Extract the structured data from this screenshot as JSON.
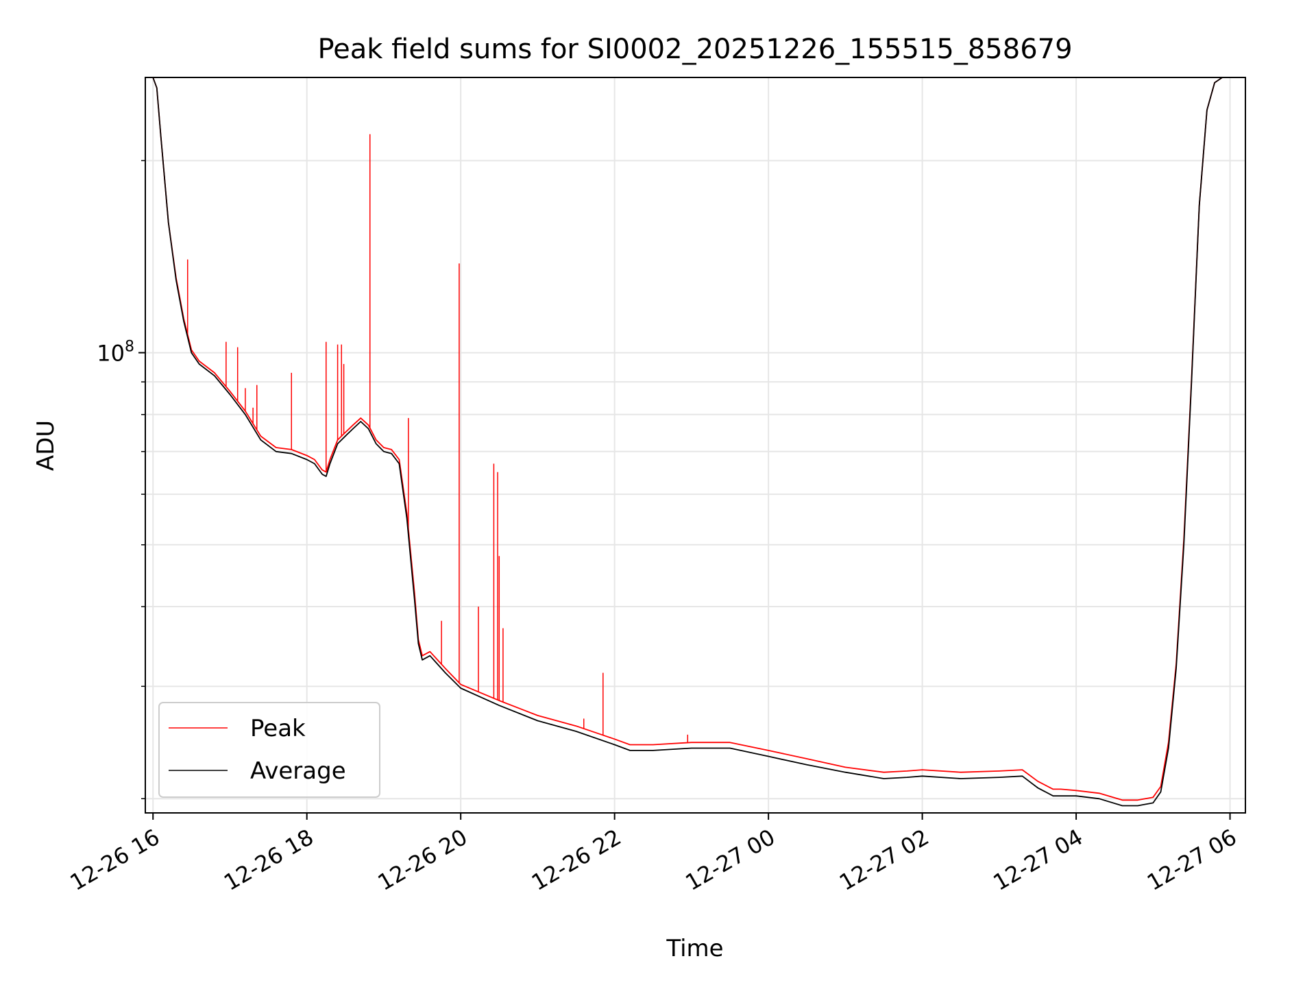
{
  "chart_data": {
    "type": "line",
    "title": "Peak field sums for SI0002_20251226_155515_858679",
    "xlabel": "Time",
    "ylabel": "ADU",
    "yscale": "log",
    "grid": true,
    "x_unit": "hours since 2025-12-26 00:00",
    "xlim": [
      15.9,
      30.2
    ],
    "ylim": [
      19000000,
      270000000
    ],
    "x_ticks": [
      {
        "value": 16,
        "label": "12-26 16"
      },
      {
        "value": 18,
        "label": "12-26 18"
      },
      {
        "value": 20,
        "label": "12-26 20"
      },
      {
        "value": 22,
        "label": "12-26 22"
      },
      {
        "value": 24,
        "label": "12-27 00"
      },
      {
        "value": 26,
        "label": "12-27 02"
      },
      {
        "value": 28,
        "label": "12-27 04"
      },
      {
        "value": 30,
        "label": "12-27 06"
      }
    ],
    "y_major_ticks": [
      {
        "value": 100000000,
        "base": "10",
        "exp": "8"
      }
    ],
    "y_minor_ticks": [
      20000000,
      30000000,
      40000000,
      50000000,
      60000000,
      70000000,
      80000000,
      90000000,
      200000000
    ],
    "legend": {
      "position": "lower-left",
      "entries": [
        {
          "label": "Peak",
          "color": "#ff0000"
        },
        {
          "label": "Average",
          "color": "#000000"
        }
      ]
    },
    "series": [
      {
        "name": "Average",
        "color": "#000000",
        "x": [
          16.0,
          16.05,
          16.1,
          16.2,
          16.3,
          16.4,
          16.5,
          16.6,
          16.8,
          17.0,
          17.2,
          17.4,
          17.6,
          17.8,
          18.0,
          18.1,
          18.2,
          18.25,
          18.3,
          18.4,
          18.5,
          18.6,
          18.7,
          18.8,
          18.9,
          19.0,
          19.1,
          19.2,
          19.3,
          19.4,
          19.45,
          19.5,
          19.6,
          19.8,
          20.0,
          20.5,
          21.0,
          21.5,
          22.0,
          22.2,
          22.5,
          23.0,
          23.5,
          24.0,
          24.5,
          25.0,
          25.5,
          25.8,
          26.0,
          26.5,
          27.0,
          27.3,
          27.5,
          27.7,
          27.8,
          28.0,
          28.3,
          28.6,
          28.8,
          29.0,
          29.1,
          29.2,
          29.3,
          29.4,
          29.5,
          29.6,
          29.7,
          29.8,
          29.9,
          30.0
        ],
        "y": [
          270000000,
          260000000,
          220000000,
          160000000,
          130000000,
          112000000,
          100000000,
          96000000,
          92000000,
          86000000,
          80000000,
          73000000,
          70000000,
          69500000,
          68000000,
          67000000,
          64500000,
          64000000,
          67000000,
          72000000,
          74000000,
          76000000,
          78000000,
          76000000,
          72000000,
          70000000,
          69500000,
          67000000,
          55000000,
          41000000,
          35000000,
          33000000,
          33500000,
          31500000,
          29800000,
          28000000,
          26500000,
          25500000,
          24300000,
          23800000,
          23800000,
          24000000,
          24000000,
          23300000,
          22600000,
          22000000,
          21500000,
          21600000,
          21700000,
          21500000,
          21600000,
          21700000,
          20800000,
          20200000,
          20200000,
          20200000,
          20000000,
          19500000,
          19500000,
          19700000,
          20500000,
          24000000,
          32000000,
          50000000,
          90000000,
          170000000,
          240000000,
          265000000,
          270000000,
          270000000
        ]
      },
      {
        "name": "Peak",
        "color": "#ff0000",
        "x": [
          16.0,
          16.05,
          16.1,
          16.2,
          16.3,
          16.4,
          16.5,
          16.6,
          16.8,
          17.0,
          17.2,
          17.4,
          17.6,
          17.8,
          18.0,
          18.1,
          18.2,
          18.25,
          18.3,
          18.4,
          18.5,
          18.6,
          18.7,
          18.8,
          18.9,
          19.0,
          19.1,
          19.2,
          19.3,
          19.4,
          19.45,
          19.5,
          19.6,
          19.8,
          20.0,
          20.5,
          21.0,
          21.5,
          22.0,
          22.2,
          22.5,
          23.0,
          23.5,
          24.0,
          24.5,
          25.0,
          25.5,
          25.8,
          26.0,
          26.5,
          27.0,
          27.3,
          27.5,
          27.7,
          27.8,
          28.0,
          28.3,
          28.6,
          28.8,
          29.0,
          29.1,
          29.2,
          29.3,
          29.4,
          29.5,
          29.6,
          29.7,
          29.8,
          29.9,
          30.0
        ],
        "y": [
          270000000,
          260000000,
          220000000,
          160000000,
          131000000,
          113000000,
          101000000,
          97000000,
          93000000,
          87000000,
          81000000,
          74000000,
          71000000,
          70500000,
          69000000,
          68000000,
          65500000,
          65000000,
          68000000,
          73000000,
          75000000,
          77000000,
          79000000,
          77000000,
          73000000,
          71000000,
          70500000,
          68000000,
          56000000,
          42000000,
          35500000,
          33500000,
          34000000,
          32000000,
          30200000,
          28500000,
          27000000,
          26000000,
          24800000,
          24300000,
          24300000,
          24500000,
          24500000,
          23800000,
          23100000,
          22400000,
          22000000,
          22100000,
          22200000,
          22000000,
          22100000,
          22200000,
          21300000,
          20700000,
          20700000,
          20600000,
          20400000,
          19900000,
          19900000,
          20100000,
          20900000,
          24500000,
          32500000,
          51000000,
          91000000,
          170000000,
          240000000,
          265000000,
          270000000,
          270000000
        ]
      }
    ],
    "peak_spikes": [
      {
        "x": 16.45,
        "y": 140000000
      },
      {
        "x": 16.95,
        "y": 104000000
      },
      {
        "x": 17.1,
        "y": 102000000
      },
      {
        "x": 17.2,
        "y": 88000000
      },
      {
        "x": 17.3,
        "y": 82000000
      },
      {
        "x": 17.35,
        "y": 89000000
      },
      {
        "x": 17.8,
        "y": 93000000
      },
      {
        "x": 18.25,
        "y": 104000000
      },
      {
        "x": 18.4,
        "y": 103000000
      },
      {
        "x": 18.45,
        "y": 103000000
      },
      {
        "x": 18.48,
        "y": 96000000
      },
      {
        "x": 18.82,
        "y": 220000000
      },
      {
        "x": 19.32,
        "y": 79000000
      },
      {
        "x": 19.75,
        "y": 38000000
      },
      {
        "x": 19.98,
        "y": 138000000
      },
      {
        "x": 20.23,
        "y": 40000000
      },
      {
        "x": 20.43,
        "y": 67000000
      },
      {
        "x": 20.48,
        "y": 65000000
      },
      {
        "x": 20.5,
        "y": 48000000
      },
      {
        "x": 20.55,
        "y": 37000000
      },
      {
        "x": 21.6,
        "y": 26700000
      },
      {
        "x": 21.85,
        "y": 31500000
      },
      {
        "x": 22.95,
        "y": 25200000
      }
    ]
  }
}
